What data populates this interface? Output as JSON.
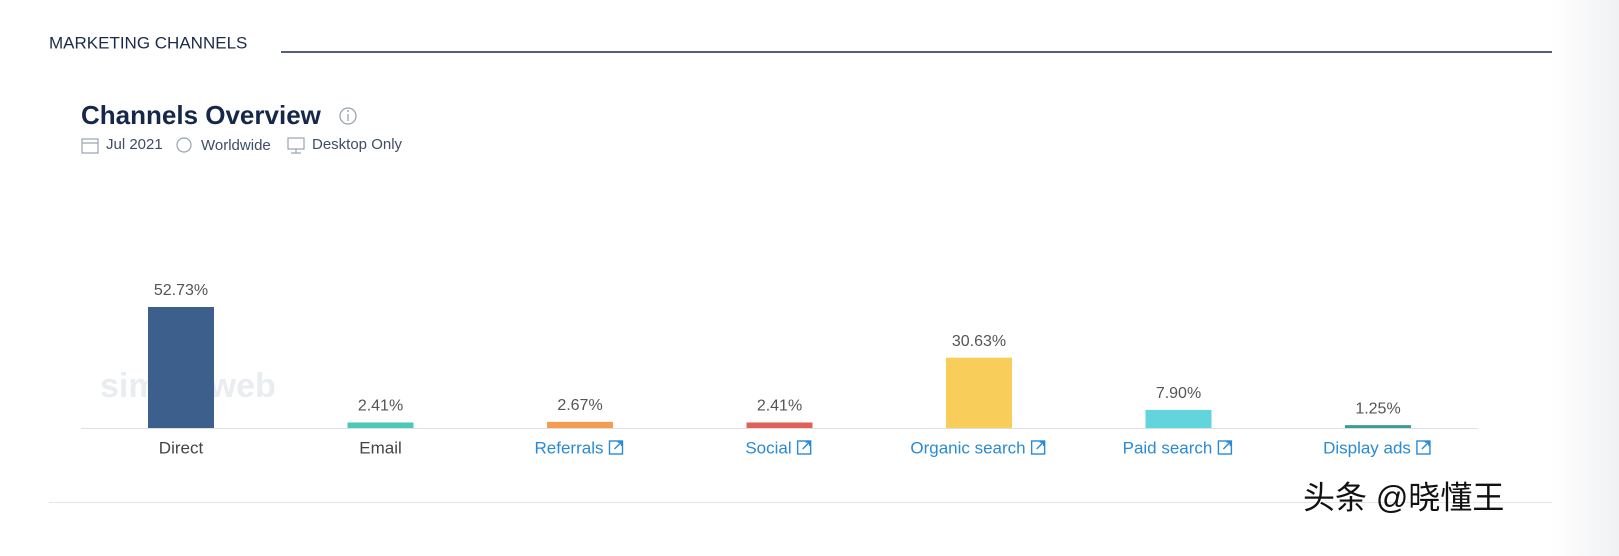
{
  "section_title": "MARKETING CHANNELS",
  "card": {
    "title": "Channels Overview",
    "date": "Jul 2021",
    "region": "Worldwide",
    "device": "Desktop Only"
  },
  "watermark": "similarweb",
  "credit": "头条 @晓懂王",
  "chart_data": {
    "type": "bar",
    "categories": [
      "Direct",
      "Email",
      "Referrals",
      "Social",
      "Organic search",
      "Paid search",
      "Display ads"
    ],
    "values": [
      52.73,
      2.41,
      2.67,
      2.41,
      30.63,
      7.9,
      1.25
    ],
    "value_labels": [
      "52.73%",
      "2.41%",
      "2.67%",
      "2.41%",
      "30.63%",
      "7.90%",
      "1.25%"
    ],
    "colors": [
      "#3d5f8c",
      "#4cc8b6",
      "#f59d4e",
      "#e0605a",
      "#f8cd5a",
      "#62d4dc",
      "#3a9c9a"
    ],
    "linked": [
      false,
      false,
      true,
      true,
      true,
      true,
      true
    ]
  }
}
